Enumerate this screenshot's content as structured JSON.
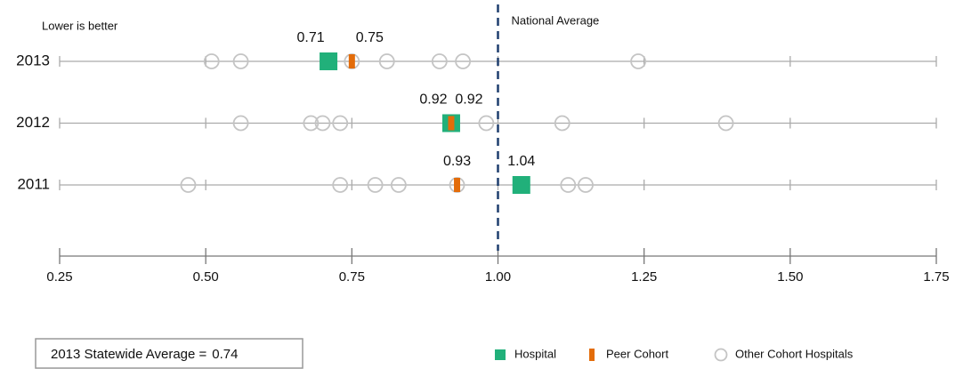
{
  "chart_data": {
    "type": "strip",
    "note": "Lower is better",
    "categories": [
      "2013",
      "2012",
      "2011"
    ],
    "series": [
      {
        "name": "Hospital",
        "color": "#21b07a",
        "marker": "square",
        "values": [
          0.71,
          0.92,
          1.04
        ]
      },
      {
        "name": "Peer Cohort",
        "color": "#e36c0a",
        "marker": "bar",
        "values": [
          0.75,
          0.92,
          0.93
        ]
      },
      {
        "name": "Other Cohort Hospitals",
        "color": "#c4c4c4",
        "marker": "circle",
        "values": [
          [
            0.51,
            0.56,
            0.71,
            0.75,
            0.81,
            0.9,
            0.94,
            1.24
          ],
          [
            0.56,
            0.68,
            0.7,
            0.73,
            0.98,
            1.11,
            1.39
          ],
          [
            0.47,
            0.73,
            0.79,
            0.83,
            0.93,
            1.12,
            1.15
          ]
        ]
      }
    ],
    "labeled_series": [
      0,
      1
    ],
    "reference_line": {
      "value": 1,
      "label": "National Average",
      "color": "#1f3f6e"
    },
    "statewide_average": {
      "label": "2013 Statewide Average =",
      "value": 0.74
    },
    "xlim": [
      0.25,
      1.75
    ],
    "xticks": [
      0.25,
      {
        "value": 0.5,
        "label": "0.50"
      },
      0.75,
      {
        "value": 1,
        "label": "1.00"
      },
      1.25,
      {
        "value": 1.5,
        "label": "1.50"
      },
      1.75
    ]
  }
}
